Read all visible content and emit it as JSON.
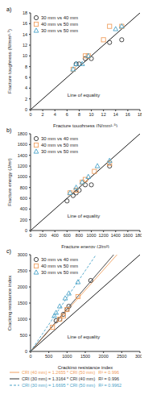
{
  "chart_data": [
    {
      "type": "scatter",
      "title": "a)",
      "x_label": "Fracture toughness (N/mm¹·⁵)",
      "y_label": "Fracture toughness (N/mm¹·⁵)",
      "xlim": [
        0,
        18
      ],
      "ylim": [
        0,
        18
      ],
      "xticks": [
        0,
        2,
        4,
        6,
        8,
        10,
        12,
        14,
        16,
        18
      ],
      "yticks": [
        0,
        2,
        4,
        6,
        8,
        10,
        12,
        14,
        16,
        18
      ],
      "legend": "upper left",
      "reference_line": {
        "label": "Line of equality",
        "slope": 1
      },
      "series": [
        {
          "name": "30 mm vs 40 mm",
          "color": "#333333",
          "marker": "circle",
          "x": [
            7.5,
            8,
            9,
            10,
            13,
            15
          ],
          "values": [
            8.5,
            8.5,
            9.5,
            9.5,
            12.5,
            13
          ]
        },
        {
          "name": "40 mm vs 50 mm",
          "color": "#f0a060",
          "marker": "square",
          "x": [
            7,
            9,
            9.5,
            12,
            13,
            15
          ],
          "values": [
            7.5,
            10,
            10,
            13,
            15.5,
            15.5
          ]
        },
        {
          "name": "30 mm vs 50 mm",
          "color": "#4aa3c8",
          "marker": "triangle",
          "x": [
            7,
            7.5,
            8.5,
            9.5,
            14,
            15
          ],
          "values": [
            7.5,
            8.5,
            8.5,
            10,
            15,
            15.5
          ]
        }
      ]
    },
    {
      "type": "scatter",
      "title": "b)",
      "x_label": "Fracture energy (J/m²)",
      "y_label": "Fracture energy (J/m²)",
      "xlim": [
        0,
        1800
      ],
      "ylim": [
        0,
        1800
      ],
      "xticks": [
        0,
        200,
        400,
        600,
        800,
        1000,
        1200,
        1400,
        1600,
        1800
      ],
      "yticks": [
        0,
        200,
        400,
        600,
        800,
        1000,
        1200,
        1400,
        1600,
        1800
      ],
      "legend": "upper left",
      "reference_line": {
        "label": "Line of equality",
        "slope": 1
      },
      "series": [
        {
          "name": "30 mm vs 40 mm",
          "color": "#333333",
          "marker": "circle",
          "x": [
            600,
            700,
            750,
            800,
            900,
            1000,
            1300
          ],
          "values": [
            550,
            650,
            700,
            750,
            850,
            850,
            1200
          ]
        },
        {
          "name": "40 mm vs 50 mm",
          "color": "#f0a060",
          "marker": "square",
          "x": [
            650,
            750,
            850,
            900,
            1050,
            1300
          ],
          "values": [
            700,
            750,
            900,
            950,
            1100,
            1250
          ]
        },
        {
          "name": "30 mm vs 50 mm",
          "color": "#4aa3c8",
          "marker": "triangle",
          "x": [
            650,
            750,
            850,
            950,
            1100,
            1300
          ],
          "values": [
            700,
            800,
            900,
            1000,
            1200,
            1300
          ]
        }
      ]
    },
    {
      "type": "scatter",
      "title": "c)",
      "x_label": "Cracking resistance index",
      "y_label": "Cracking resistance index",
      "xlim": [
        0,
        3000
      ],
      "ylim": [
        0,
        3000
      ],
      "xticks": [
        0,
        500,
        1000,
        1500,
        2000,
        2500,
        3000
      ],
      "yticks": [
        0,
        500,
        1000,
        1500,
        2000,
        2500,
        3000
      ],
      "legend": "upper left",
      "reference_line": {
        "label": "Line of equality",
        "slope": 1
      },
      "series": [
        {
          "name": "30 mm vs 40 mm",
          "color": "#333333",
          "marker": "circle",
          "x": [
            700,
            800,
            900,
            1000,
            1050,
            1650
          ],
          "values": [
            950,
            1000,
            1150,
            1300,
            1400,
            2200
          ]
        },
        {
          "name": "40 mm vs 50 mm",
          "color": "#f0a060",
          "marker": "square",
          "x": [
            600,
            800,
            900,
            1000,
            1300
          ],
          "values": [
            750,
            1000,
            1100,
            1300,
            1700
          ]
        },
        {
          "name": "30 mm vs 50 mm",
          "color": "#4aa3c8",
          "marker": "triangle",
          "x": [
            650,
            700,
            800,
            950,
            1050,
            1300
          ],
          "values": [
            1100,
            1200,
            1400,
            1650,
            1800,
            2150
          ]
        }
      ],
      "fits": [
        {
          "equation": "CRI (40 mm) = 1.2655 * CRI (50 mm)",
          "slope": 1.2655,
          "r2": {
            "value": 0.996,
            "label": "R² = 0.996"
          },
          "color": "#f0a060",
          "line_style": "solid"
        },
        {
          "equation": "CRI (30 mm) = 1.3164 * CRI (40 mm)",
          "slope": 1.3164,
          "r2": {
            "value": 0.996,
            "label": "R² = 0.996"
          },
          "color": "#333333",
          "line_style": "solid"
        },
        {
          "equation": "CRI (30 mm) = 1.6695 * CRI (50 mm)",
          "slope": 1.6695,
          "r2": {
            "value": 0.9962,
            "label": "R² = 0.9962"
          },
          "color": "#4aa3c8",
          "line_style": "dashed"
        }
      ]
    }
  ]
}
